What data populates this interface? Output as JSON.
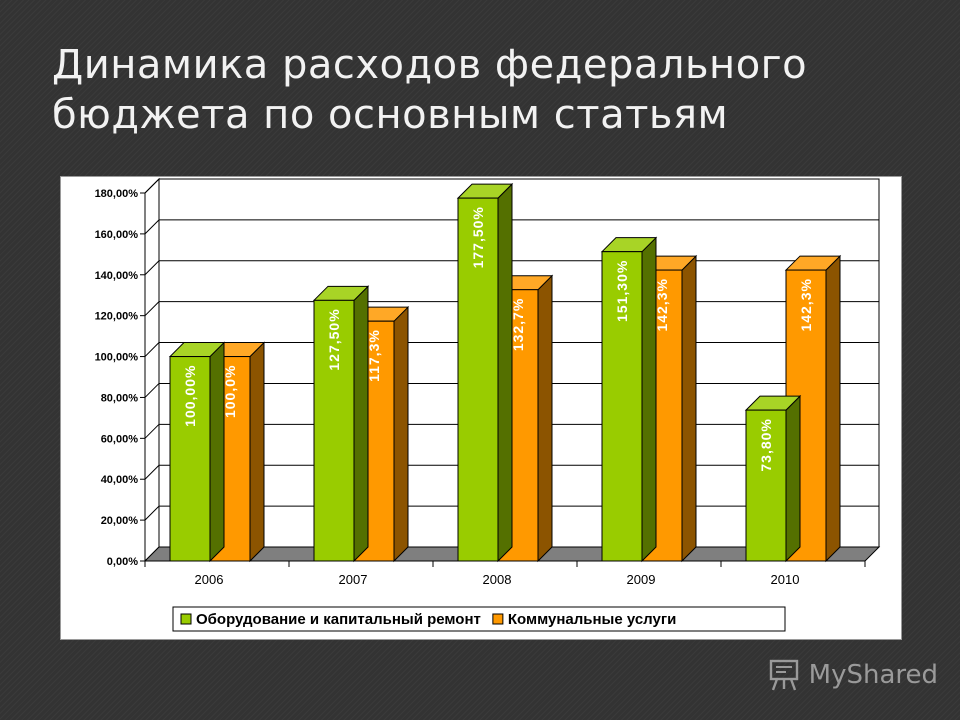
{
  "title": "Динамика расходов федерального бюджета по основным статьям",
  "logo_text": "MyShared",
  "colors": {
    "series1": "#99cc00",
    "series2": "#ff9900"
  },
  "chart_data": {
    "type": "bar",
    "categories": [
      "2006",
      "2007",
      "2008",
      "2009",
      "2010"
    ],
    "series": [
      {
        "name": "Оборудование и капитальный ремонт",
        "values": [
          100.0,
          127.5,
          177.5,
          151.3,
          73.8
        ],
        "labels": [
          "100,00%",
          "127,50%",
          "177,50%",
          "151,30%",
          "73,80%"
        ]
      },
      {
        "name": "Коммунальные услуги",
        "values": [
          100.0,
          117.3,
          132.7,
          142.3,
          142.3
        ],
        "labels": [
          "100,0%",
          "117,3%",
          "132,7%",
          "142,3%",
          "142,3%"
        ]
      }
    ],
    "y_ticks": [
      "0,00%",
      "20,00%",
      "40,00%",
      "60,00%",
      "80,00%",
      "100,00%",
      "120,00%",
      "140,00%",
      "160,00%",
      "180,00%"
    ],
    "ylim": [
      0,
      180
    ],
    "grid": true,
    "legend_position": "bottom",
    "style": "3d-clustered-column"
  }
}
